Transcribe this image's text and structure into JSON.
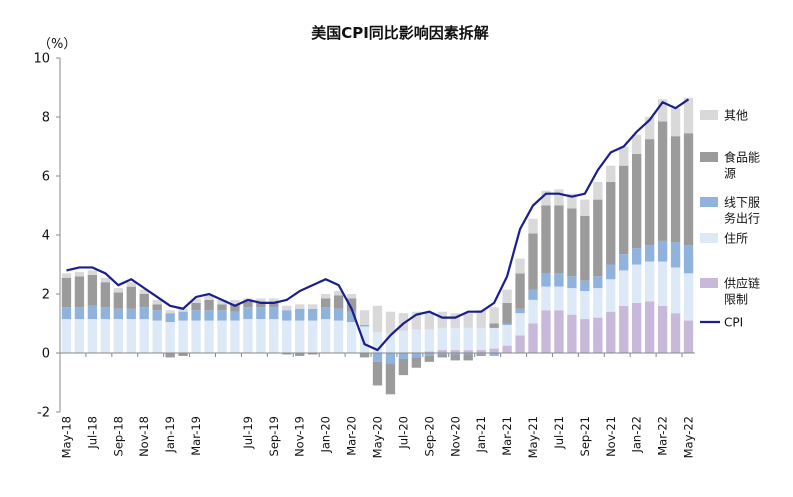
{
  "chart_data": {
    "type": "bar",
    "title": "美国CPI同比影响因素拆解",
    "ylabel": "（%）",
    "ylim": [
      -2,
      10
    ],
    "yticks": [
      "10",
      "8",
      "6",
      "4",
      "2",
      "0",
      "-2"
    ],
    "yticks_values": [
      10,
      8,
      6,
      4,
      2,
      0,
      -2
    ],
    "negative_tick_color": "#e02020",
    "x_tick_labels": [
      "May-18",
      "Jul-18",
      "Sep-18",
      "Nov-18",
      "Jan-19",
      "Mar-19",
      "Jul-19",
      "Sep-19",
      "Nov-19",
      "Jan-20",
      "Mar-20",
      "May-20",
      "Jul-20",
      "Sep-20",
      "Nov-20",
      "Jan-21",
      "Mar-21",
      "May-21",
      "Jul-21",
      "Sep-21",
      "Nov-21",
      "Jan-22",
      "Mar-22",
      "May-22"
    ],
    "x_tick_indices": [
      0,
      2,
      4,
      6,
      8,
      10,
      14,
      16,
      18,
      20,
      22,
      24,
      26,
      28,
      30,
      32,
      34,
      36,
      38,
      40,
      42,
      44,
      46,
      48
    ],
    "legend": [
      {
        "label": "其他",
        "series": "other"
      },
      {
        "label": "食品能源",
        "series": "food_energy"
      },
      {
        "label": "线下服务出行",
        "series": "offline"
      },
      {
        "label": "住所",
        "series": "housing"
      },
      {
        "label": "供应链限制",
        "series": "supply"
      },
      {
        "label": "CPI",
        "series": "cpi"
      }
    ],
    "colors": {
      "other": "#d9d9d9",
      "food_energy": "#9b9b9b",
      "offline": "#8fb3dd",
      "housing": "#dde9f6",
      "supply": "#c8b8da",
      "cpi": "#1a1f8c"
    },
    "n_months": 49,
    "series": {
      "supply": [
        0,
        0,
        0,
        0,
        0,
        0,
        0,
        0,
        0,
        0,
        0,
        0,
        0,
        0,
        0,
        0,
        0,
        0,
        0,
        0,
        0,
        0,
        0,
        0,
        0,
        0,
        0,
        0,
        0.05,
        0.1,
        0.1,
        0.1,
        0.1,
        0.15,
        0.25,
        0.6,
        1.0,
        1.45,
        1.45,
        1.3,
        1.15,
        1.2,
        1.4,
        1.6,
        1.7,
        1.75,
        1.6,
        1.35,
        1.1
      ],
      "housing": [
        1.15,
        1.15,
        1.15,
        1.15,
        1.15,
        1.15,
        1.15,
        1.1,
        1.05,
        1.1,
        1.1,
        1.1,
        1.1,
        1.1,
        1.15,
        1.15,
        1.15,
        1.1,
        1.1,
        1.1,
        1.15,
        1.1,
        1.05,
        0.9,
        0.7,
        0.65,
        0.75,
        0.8,
        0.75,
        0.75,
        0.75,
        0.75,
        0.75,
        0.7,
        0.7,
        0.75,
        0.8,
        0.8,
        0.8,
        0.9,
        0.95,
        1.0,
        1.1,
        1.2,
        1.3,
        1.35,
        1.5,
        1.55,
        1.6
      ],
      "offline": [
        0.4,
        0.4,
        0.45,
        0.4,
        0.35,
        0.35,
        0.4,
        0.35,
        0.3,
        0.3,
        0.35,
        0.35,
        0.35,
        0.3,
        0.4,
        0.4,
        0.4,
        0.35,
        0.4,
        0.4,
        0.4,
        0.4,
        0.35,
        0.05,
        -0.3,
        -0.35,
        -0.2,
        -0.15,
        -0.1,
        -0.05,
        -0.05,
        -0.05,
        -0.05,
        -0.1,
        0.05,
        0.15,
        0.35,
        0.45,
        0.45,
        0.4,
        0.35,
        0.4,
        0.5,
        0.55,
        0.55,
        0.55,
        0.7,
        0.85,
        0.95
      ],
      "food_energy": [
        1.0,
        1.05,
        1.05,
        0.85,
        0.55,
        0.75,
        0.45,
        0.2,
        -0.15,
        -0.1,
        0.25,
        0.35,
        0.2,
        0.25,
        0.2,
        0.2,
        0.2,
        -0.05,
        -0.1,
        -0.05,
        0.3,
        0.45,
        0.45,
        -0.15,
        -0.8,
        -1.05,
        -0.55,
        -0.35,
        -0.2,
        -0.1,
        -0.2,
        -0.2,
        -0.05,
        0.15,
        0.7,
        1.2,
        1.9,
        2.3,
        2.3,
        2.3,
        2.2,
        2.6,
        2.8,
        3.0,
        3.2,
        3.6,
        4.05,
        3.6,
        3.8
      ],
      "other": [
        0.15,
        0.15,
        0.15,
        0.15,
        0.15,
        0.15,
        0.15,
        0.15,
        0.1,
        0.1,
        0.15,
        0.15,
        0.15,
        0.15,
        0.1,
        0.1,
        0.1,
        0.15,
        0.15,
        0.15,
        0.15,
        0.15,
        0.15,
        0.5,
        0.9,
        0.75,
        0.6,
        0.6,
        0.55,
        0.55,
        0.5,
        0.5,
        0.6,
        0.55,
        0.45,
        0.5,
        0.5,
        0.5,
        0.55,
        0.5,
        0.55,
        0.6,
        0.55,
        0.65,
        0.65,
        0.75,
        0.75,
        0.95,
        1.2
      ],
      "cpi": [
        2.8,
        2.9,
        2.9,
        2.7,
        2.3,
        2.5,
        2.2,
        1.9,
        1.6,
        1.5,
        1.9,
        2.0,
        1.8,
        1.6,
        1.8,
        1.7,
        1.7,
        1.8,
        2.1,
        2.3,
        2.5,
        2.3,
        1.5,
        0.3,
        0.1,
        0.6,
        1.0,
        1.3,
        1.4,
        1.2,
        1.2,
        1.4,
        1.4,
        1.7,
        2.6,
        4.2,
        5.0,
        5.4,
        5.4,
        5.3,
        5.4,
        6.2,
        6.8,
        7.0,
        7.5,
        7.9,
        8.5,
        8.3,
        8.6
      ]
    },
    "grid": false,
    "legend_position": "right"
  }
}
